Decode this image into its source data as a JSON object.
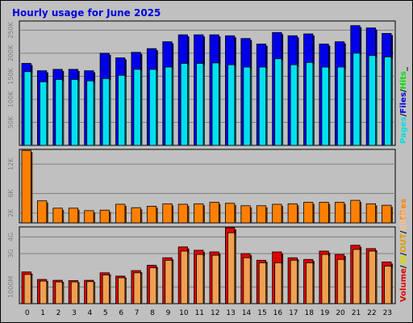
{
  "chart_data": {
    "type": "bar",
    "title": "Hourly usage for June 2025",
    "categories": [
      "0",
      "1",
      "2",
      "3",
      "4",
      "5",
      "6",
      "7",
      "8",
      "9",
      "10",
      "11",
      "12",
      "13",
      "14",
      "15",
      "16",
      "17",
      "18",
      "19",
      "20",
      "21",
      "22",
      "23"
    ],
    "panels": [
      {
        "id": "hits",
        "ylim": [
          0,
          270000
        ],
        "yticks": [
          {
            "label": "50K",
            "value": 50000
          },
          {
            "label": "100K",
            "value": 100000
          },
          {
            "label": "150K",
            "value": 150000
          },
          {
            "label": "200K",
            "value": 200000
          },
          {
            "label": "250K",
            "value": 250000
          }
        ],
        "legend": [
          {
            "text": "Pages",
            "color": "#00e0e0"
          },
          {
            "text": "/",
            "color": "#000000"
          },
          {
            "text": "Files",
            "color": "#0000e0"
          },
          {
            "text": "/",
            "color": "#000000"
          },
          {
            "text": "Hits",
            "color": "#00e000"
          },
          {
            "text": "_",
            "color": "#000000"
          }
        ],
        "series": [
          {
            "name": "Hits",
            "color": "#00ee00",
            "values": [
              null,
              null,
              null,
              null,
              null,
              null,
              null,
              null,
              null,
              null,
              null,
              null,
              null,
              null,
              null,
              null,
              null,
              null,
              null,
              null,
              null,
              null,
              null,
              null
            ]
          },
          {
            "name": "Files",
            "color": "#0000e8",
            "values": [
              178000,
              162000,
              165000,
              165000,
              162000,
              200000,
              190000,
              202000,
              210000,
              225000,
              240000,
              240000,
              240000,
              238000,
              232000,
              220000,
              245000,
              238000,
              242000,
              220000,
              225000,
              260000,
              255000,
              243000
            ]
          },
          {
            "name": "Pages",
            "color": "#00e0f0",
            "values": [
              160000,
              138000,
              143000,
              143000,
              140000,
              145000,
              152000,
              165000,
              165000,
              170000,
              178000,
              178000,
              179000,
              175000,
              170000,
              170000,
              188000,
              175000,
              180000,
              170000,
              170000,
              200000,
              195000,
              192000
            ]
          }
        ]
      },
      {
        "id": "sites",
        "ylim": [
          0,
          15000
        ],
        "yticks": [
          {
            "label": "2K",
            "value": 2000
          },
          {
            "label": "6K",
            "value": 6000
          },
          {
            "label": "12K",
            "value": 12000
          }
        ],
        "legend": [
          {
            "text": "Sites",
            "color": "#ff8000"
          }
        ],
        "series": [
          {
            "name": "Sites",
            "color": "#ff8000",
            "values": [
              14800,
              4500,
              3000,
              3000,
              2500,
              2600,
              3800,
              3100,
              3400,
              3900,
              3800,
              3900,
              4200,
              4000,
              3500,
              3500,
              3800,
              3900,
              4200,
              4200,
              4200,
              4600,
              3900,
              3600
            ]
          }
        ]
      },
      {
        "id": "volume",
        "ylim": [
          0,
          4600
        ],
        "yticks": [
          {
            "label": "1000M",
            "value": 1000
          },
          {
            "label": "3G",
            "value": 3000
          },
          {
            "label": "4G",
            "value": 4000
          }
        ],
        "legend": [
          {
            "text": "Volume",
            "color": "#e00000"
          },
          {
            "text": "/",
            "color": "#000000"
          },
          {
            "text": "IN",
            "color": "#d8d800"
          },
          {
            "text": "/",
            "color": "#000000"
          },
          {
            "text": "OUT",
            "color": "#e0a000"
          },
          {
            "text": "/",
            "color": "#000000"
          },
          {
            "text": "Sites",
            "color": "#f8c090"
          }
        ],
        "series": [
          {
            "name": "Volume",
            "color": "#e00000",
            "values": [
              1900,
              1450,
              1400,
              1380,
              1400,
              1850,
              1650,
              1980,
              2300,
              2750,
              3400,
              3200,
              3100,
              4550,
              3000,
              2600,
              3100,
              2750,
              2650,
              3150,
              2950,
              3500,
              3300,
              2500
            ]
          },
          {
            "name": "OUT",
            "color": "#f0a050",
            "values": [
              1750,
              1350,
              1300,
              1300,
              1320,
              1720,
              1550,
              1850,
              2150,
              2600,
              3150,
              2950,
              2900,
              4250,
              2750,
              2450,
              2450,
              2600,
              2450,
              2950,
              2650,
              3250,
              3150,
              2250
            ]
          }
        ]
      }
    ],
    "grid": true,
    "background": "#c0c0c0"
  }
}
